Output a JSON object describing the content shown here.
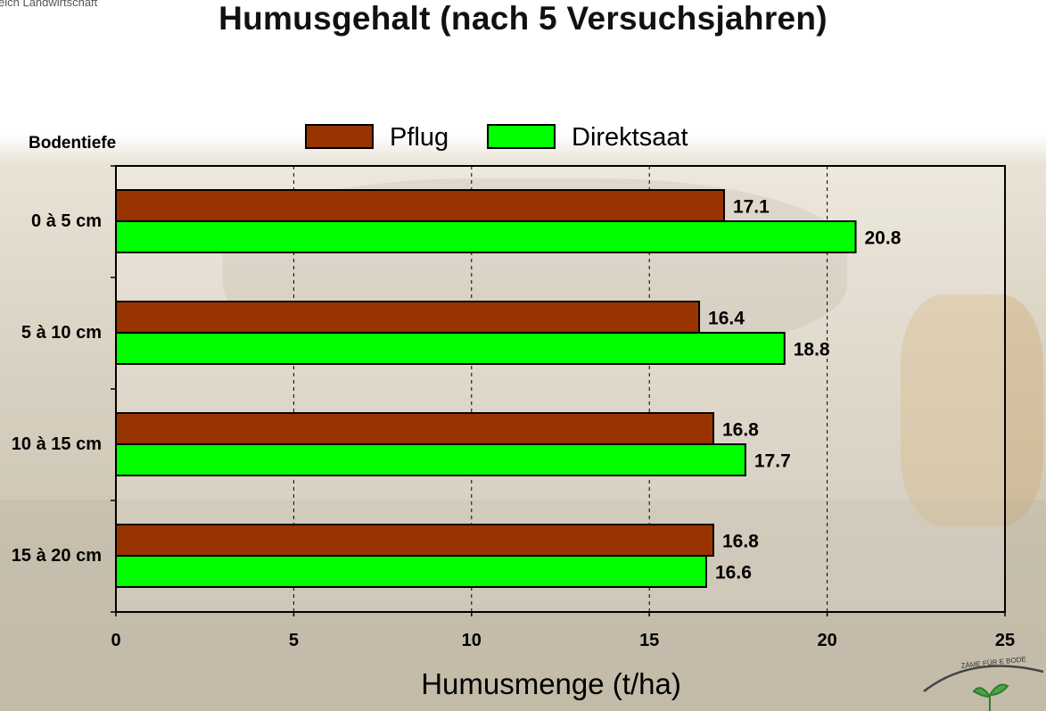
{
  "header": {
    "corner_text": "eich Landwirtschaft",
    "title": "Humusgehalt (nach 5 Versuchsjahren)"
  },
  "logo": {
    "text": "ZÄME FÜR E BODE"
  },
  "colors": {
    "pflug": "#993300",
    "direktsaat": "#00ff00",
    "axis": "#000000",
    "grid": "#000000"
  },
  "chart_data": {
    "type": "bar",
    "orientation": "horizontal",
    "title": "Humusgehalt (nach 5 Versuchsjahren)",
    "categories": [
      "0 à 5 cm",
      "5 à 10 cm",
      "10 à 15 cm",
      "15 à 20 cm"
    ],
    "category_axis_label": "Bodentiefe",
    "xlabel": "Humusmenge (t/ha)",
    "xlim": [
      0,
      25
    ],
    "xticks": [
      "0",
      "5",
      "10",
      "15",
      "20",
      "25"
    ],
    "grid": "vertical dashed",
    "legend_position": "top",
    "series": [
      {
        "name": "Pflug",
        "color": "#993300",
        "values": [
          17.1,
          16.4,
          16.8,
          16.8
        ]
      },
      {
        "name": "Direktsaat",
        "color": "#00ff00",
        "values": [
          20.8,
          18.8,
          17.7,
          16.6
        ]
      }
    ]
  }
}
